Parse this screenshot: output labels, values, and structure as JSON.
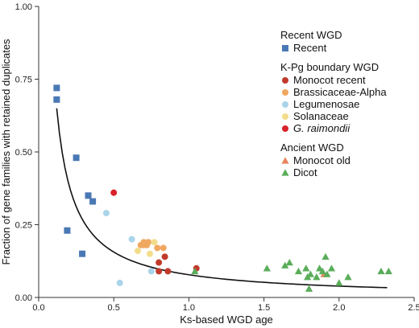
{
  "chart_data": {
    "type": "scatter",
    "title": "",
    "xlabel": "Ks-based WGD age",
    "ylabel": "Fraction of gene families with retained duplicates",
    "xlim": [
      0,
      2.5
    ],
    "ylim": [
      0,
      1
    ],
    "xticks": [
      "0.0",
      "0.5",
      "1.0",
      "1.5",
      "2.0",
      "2.5"
    ],
    "xtick_values": [
      0,
      0.5,
      1.0,
      1.5,
      2.0,
      2.5
    ],
    "yticks": [
      "0.00",
      "0.25",
      "0.50",
      "0.75",
      "1.00"
    ],
    "ytick_values": [
      0,
      0.25,
      0.5,
      0.75,
      1.0
    ],
    "grid": false,
    "legend_position": "top-right",
    "legend_groups": [
      {
        "title": "Recent WGD",
        "series": [
          "Recent"
        ]
      },
      {
        "title": "K-Pg boundary WGD",
        "series": [
          "Monocot recent",
          "Brassicaceae-Alpha",
          "Legumenosae",
          "Solanaceae",
          "G. raimondii"
        ]
      },
      {
        "title": "Ancient WGD",
        "series": [
          "Monocot old",
          "Dicot"
        ]
      }
    ],
    "series": [
      {
        "name": "Recent",
        "marker": "square",
        "color": "#4a78b5",
        "x": [
          0.12,
          0.12,
          0.19,
          0.25,
          0.29,
          0.33,
          0.36
        ],
        "y": [
          0.72,
          0.68,
          0.23,
          0.48,
          0.15,
          0.35,
          0.33
        ]
      },
      {
        "name": "Monocot recent",
        "marker": "circle",
        "color": "#c03a2b",
        "x": [
          0.8,
          0.8,
          0.84,
          0.86,
          1.05
        ],
        "y": [
          0.12,
          0.09,
          0.14,
          0.09,
          0.1
        ]
      },
      {
        "name": "Brassicaceae-Alpha",
        "marker": "circle",
        "color": "#f0a860",
        "x": [
          0.68,
          0.7,
          0.72,
          0.73,
          0.7,
          0.79,
          0.83
        ],
        "y": [
          0.18,
          0.19,
          0.18,
          0.19,
          0.18,
          0.17,
          0.17
        ]
      },
      {
        "name": "Legumenosae",
        "marker": "circle",
        "color": "#a9d4ea",
        "x": [
          0.45,
          0.54,
          0.62,
          0.75
        ],
        "y": [
          0.29,
          0.05,
          0.2,
          0.09
        ]
      },
      {
        "name": "Solanaceae",
        "marker": "circle",
        "color": "#f3dc8a",
        "x": [
          0.66,
          0.74,
          0.77
        ],
        "y": [
          0.16,
          0.15,
          0.19
        ]
      },
      {
        "name": "G. raimondii",
        "marker": "circle",
        "color": "#d9232a",
        "x": [
          0.5
        ],
        "y": [
          0.36
        ]
      },
      {
        "name": "Monocot old",
        "marker": "triangle",
        "color": "#e8845e",
        "x": [
          1.9
        ],
        "y": [
          0.08
        ]
      },
      {
        "name": "Dicot",
        "marker": "triangle",
        "color": "#5aad5a",
        "x": [
          1.04,
          1.52,
          1.64,
          1.67,
          1.73,
          1.78,
          1.79,
          1.8,
          1.81,
          1.85,
          1.87,
          1.89,
          1.91,
          1.92,
          1.95,
          2.0,
          2.06,
          2.28,
          2.33
        ],
        "y": [
          0.09,
          0.1,
          0.11,
          0.12,
          0.09,
          0.1,
          0.07,
          0.03,
          0.08,
          0.07,
          0.1,
          0.09,
          0.14,
          0.08,
          0.1,
          0.05,
          0.07,
          0.09,
          0.09
        ]
      }
    ],
    "fit_curve": {
      "type": "line",
      "color": "#111111",
      "formula": "y = a / x",
      "a": 0.078,
      "x_range": [
        0.12,
        2.32
      ]
    }
  }
}
